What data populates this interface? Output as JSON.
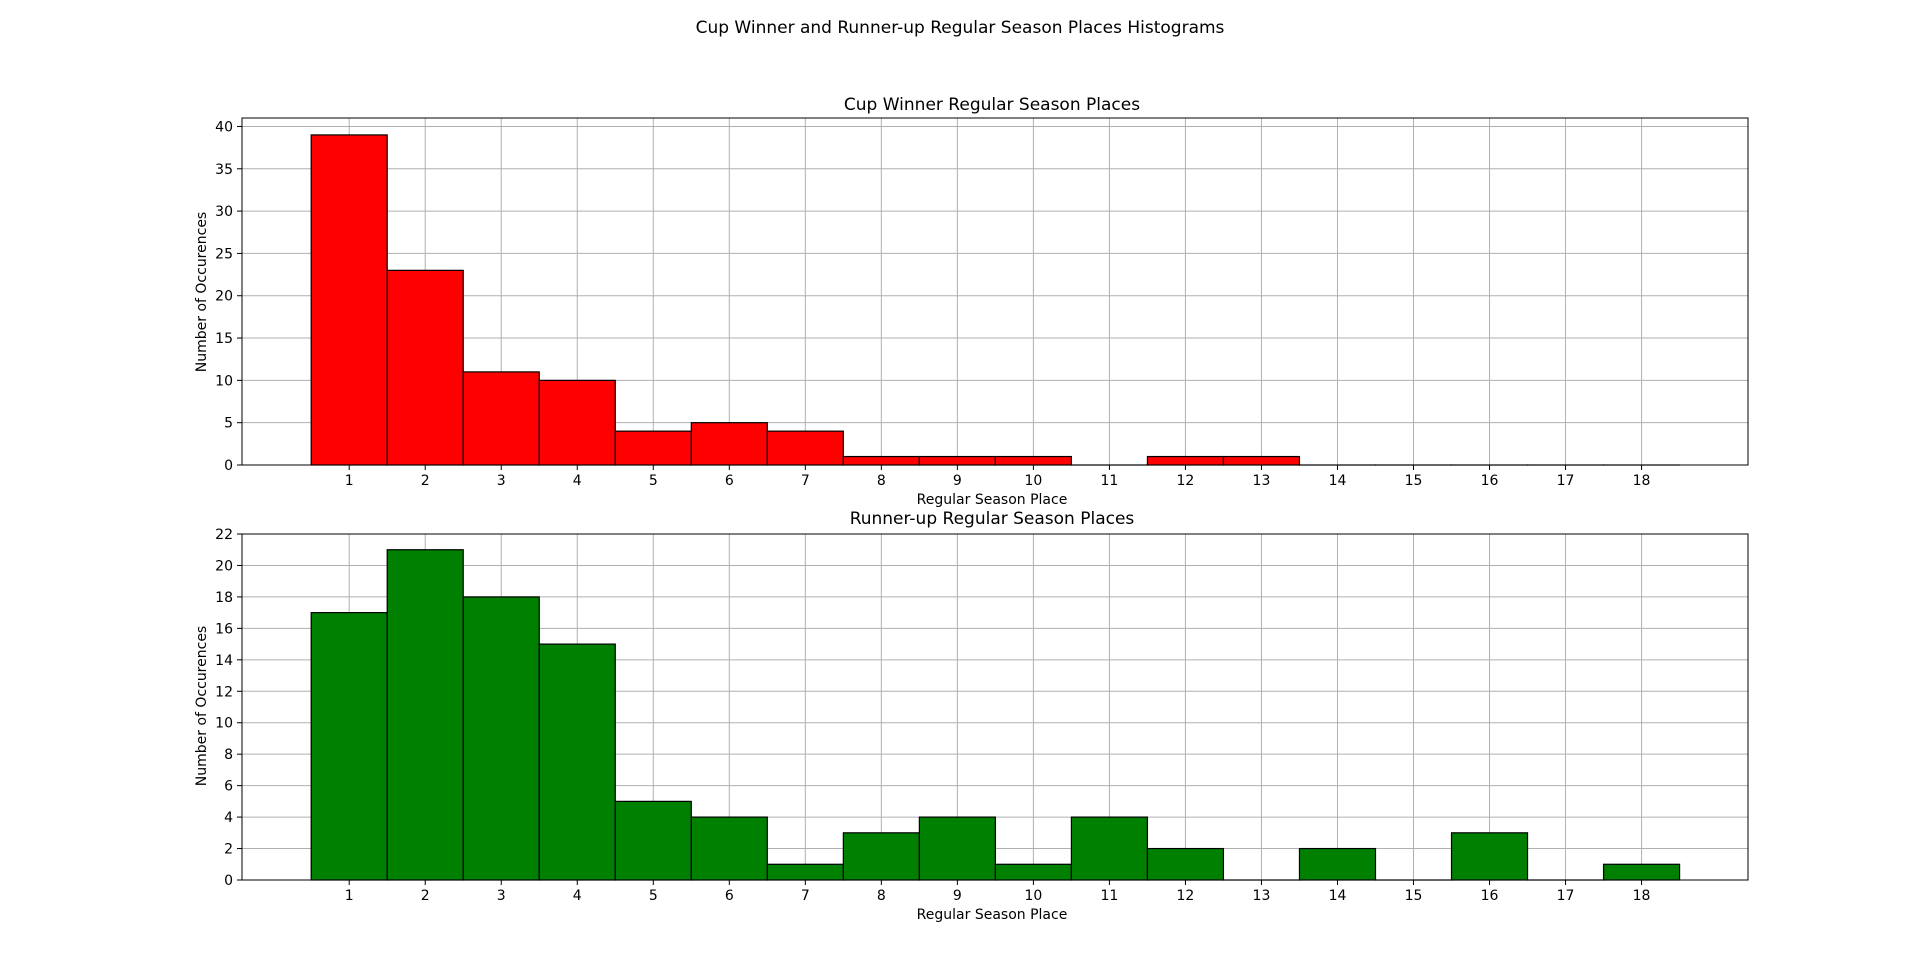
{
  "figure": {
    "suptitle": "Cup Winner and Runner-up Regular Season Places Histograms"
  },
  "chart_data": [
    {
      "type": "bar",
      "title": "Cup Winner Regular Season Places",
      "xlabel": "Regular Season Place",
      "ylabel": "Number of Occurences",
      "categories": [
        1,
        2,
        3,
        4,
        5,
        6,
        7,
        8,
        9,
        10,
        11,
        12,
        13,
        14,
        15,
        16,
        17,
        18
      ],
      "values": [
        39,
        23,
        11,
        10,
        4,
        5,
        4,
        1,
        1,
        1,
        0,
        1,
        1,
        0,
        0,
        0,
        0,
        0
      ],
      "xlim": [
        -0.41,
        19.4
      ],
      "ylim": [
        0,
        41
      ],
      "yticks": [
        0,
        5,
        10,
        15,
        20,
        25,
        30,
        35,
        40
      ],
      "grid": true,
      "color": "#ff0000",
      "edgecolor": "#000000"
    },
    {
      "type": "bar",
      "title": "Runner-up Regular Season Places",
      "xlabel": "Regular Season Place",
      "ylabel": "Number of Occurences",
      "categories": [
        1,
        2,
        3,
        4,
        5,
        6,
        7,
        8,
        9,
        10,
        11,
        12,
        13,
        14,
        15,
        16,
        17,
        18
      ],
      "values": [
        17,
        21,
        18,
        15,
        5,
        4,
        1,
        3,
        4,
        1,
        4,
        2,
        0,
        2,
        0,
        3,
        0,
        1
      ],
      "xlim": [
        -0.41,
        19.4
      ],
      "ylim": [
        0,
        22
      ],
      "yticks": [
        0,
        2,
        4,
        6,
        8,
        10,
        12,
        14,
        16,
        18,
        20,
        22
      ],
      "grid": true,
      "color": "#008000",
      "edgecolor": "#000000"
    }
  ]
}
